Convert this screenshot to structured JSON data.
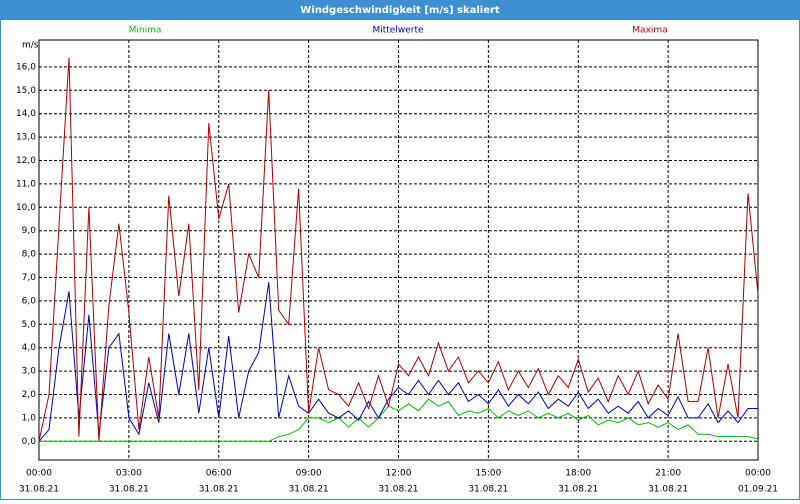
{
  "chart_data": {
    "type": "line",
    "title": "Windgeschwindigkeit [m/s] skaliert",
    "y_unit": "m/s",
    "x": [
      0,
      20,
      40,
      60,
      80,
      100,
      120,
      140,
      160,
      180,
      200,
      220,
      240,
      260,
      280,
      300,
      320,
      340,
      360,
      380,
      400,
      420,
      440,
      460,
      480,
      500,
      520,
      540,
      560,
      580,
      600,
      620,
      640,
      660,
      680,
      700,
      720,
      740,
      760,
      780,
      800,
      820,
      840,
      860,
      880,
      900,
      920,
      940,
      960,
      980,
      1000,
      1020,
      1040,
      1060,
      1080,
      1100,
      1120,
      1140,
      1160,
      1180,
      1200,
      1220,
      1240,
      1260,
      1280,
      1300,
      1320,
      1340,
      1360,
      1380,
      1400,
      1420,
      1440
    ],
    "series": [
      {
        "name": "Minima",
        "color": "#00c000",
        "values": [
          0,
          0,
          0,
          0,
          0,
          0,
          0,
          0,
          0,
          0,
          0,
          0,
          0,
          0,
          0,
          0,
          0,
          0,
          0,
          0,
          0,
          0,
          0,
          0,
          0.2,
          0.3,
          0.5,
          1.0,
          1.0,
          0.8,
          1.0,
          0.6,
          1.0,
          0.6,
          1.0,
          1.5,
          1.3,
          1.6,
          1.3,
          1.8,
          1.5,
          1.7,
          1.1,
          1.3,
          1.2,
          1.4,
          1.0,
          1.3,
          1.1,
          1.3,
          1.0,
          1.2,
          1.0,
          1.2,
          0.9,
          1.1,
          0.7,
          0.9,
          0.8,
          1.0,
          0.7,
          0.8,
          0.6,
          0.8,
          0.5,
          0.7,
          0.3,
          0.3,
          0.2,
          0.2,
          0.2,
          0.2,
          0.1
        ]
      },
      {
        "name": "Mittelwerte",
        "color": "#0000c0",
        "values": [
          0,
          0.5,
          4.0,
          6.4,
          1.0,
          5.4,
          0.3,
          4.0,
          4.6,
          1.0,
          0.3,
          2.5,
          0.8,
          4.6,
          2.0,
          4.6,
          1.2,
          4.0,
          1.0,
          4.5,
          1.0,
          3.0,
          3.8,
          6.8,
          1.0,
          2.8,
          1.5,
          1.2,
          1.8,
          1.2,
          1.0,
          1.3,
          0.9,
          1.7,
          1.0,
          1.8,
          2.3,
          2.0,
          2.6,
          2.0,
          2.6,
          2.0,
          2.5,
          1.7,
          2.0,
          1.6,
          2.2,
          1.5,
          2.0,
          1.6,
          2.1,
          1.4,
          1.8,
          1.5,
          2.1,
          1.4,
          1.8,
          1.2,
          1.5,
          1.2,
          1.7,
          1.0,
          1.4,
          1.1,
          1.9,
          1.0,
          1.0,
          1.6,
          0.8,
          1.3,
          0.8,
          1.4,
          1.4
        ]
      },
      {
        "name": "Maxima",
        "color": "#b00000",
        "values": [
          0,
          2.0,
          9.2,
          16.4,
          0.2,
          10.0,
          0,
          5.8,
          9.3,
          5.5,
          0.5,
          3.6,
          1.0,
          10.5,
          6.2,
          9.3,
          2.2,
          13.6,
          9.5,
          11.0,
          5.5,
          8.0,
          7.0,
          15.0,
          5.6,
          5.0,
          10.8,
          1.2,
          4.0,
          2.2,
          2.0,
          1.5,
          2.5,
          1.4,
          2.8,
          1.5,
          3.3,
          2.8,
          3.6,
          2.8,
          4.2,
          3.0,
          3.6,
          2.5,
          3.0,
          2.5,
          3.4,
          2.2,
          3.0,
          2.3,
          3.1,
          2.0,
          2.8,
          2.3,
          3.5,
          2.1,
          2.7,
          1.7,
          2.8,
          2.0,
          3.0,
          1.6,
          2.4,
          1.8,
          4.6,
          1.7,
          1.7,
          4.0,
          1.0,
          3.3,
          1.0,
          10.6,
          6.3
        ]
      }
    ],
    "xlim": [
      0,
      1440
    ],
    "xticks": [
      {
        "value": 0,
        "label": "00:00"
      },
      {
        "value": 180,
        "label": "03:00"
      },
      {
        "value": 360,
        "label": "06:00"
      },
      {
        "value": 540,
        "label": "09:00"
      },
      {
        "value": 720,
        "label": "12:00"
      },
      {
        "value": 900,
        "label": "15:00"
      },
      {
        "value": 1080,
        "label": "18:00"
      },
      {
        "value": 1260,
        "label": "21:00"
      },
      {
        "value": 1440,
        "label": "00:00"
      }
    ],
    "xtick_dates": [
      "31.08.21",
      "31.08.21",
      "31.08.21",
      "31.08.21",
      "31.08.21",
      "31.08.21",
      "31.08.21",
      "31.08.21",
      "01.09.21"
    ],
    "ylim": [
      -0.8,
      17.15
    ],
    "yticks": [
      {
        "value": 0,
        "label": "0,0"
      },
      {
        "value": 1,
        "label": "1,0"
      },
      {
        "value": 2,
        "label": "2,0"
      },
      {
        "value": 3,
        "label": "3,0"
      },
      {
        "value": 4,
        "label": "4,0"
      },
      {
        "value": 5,
        "label": "5,0"
      },
      {
        "value": 6,
        "label": "6,0"
      },
      {
        "value": 7,
        "label": "7,0"
      },
      {
        "value": 8,
        "label": "8,0"
      },
      {
        "value": 9,
        "label": "9,0"
      },
      {
        "value": 10,
        "label": "10,0"
      },
      {
        "value": 11,
        "label": "11,0"
      },
      {
        "value": 12,
        "label": "12,0"
      },
      {
        "value": 13,
        "label": "13,0"
      },
      {
        "value": 14,
        "label": "14,0"
      },
      {
        "value": 15,
        "label": "15,0"
      },
      {
        "value": 16,
        "label": "16,0"
      }
    ],
    "grid": true
  }
}
